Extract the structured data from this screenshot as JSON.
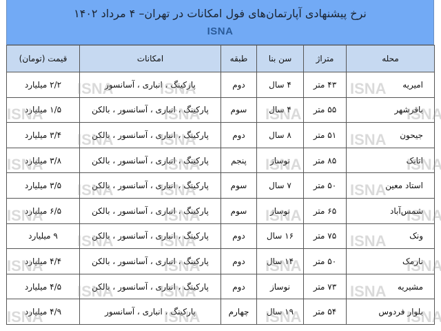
{
  "title": "نرخ پیشنهادی آپارتمان‌های فول امکانات در تهران– ۴ مرداد ۱۴۰۲",
  "brand": "ISNA",
  "watermark": "ISNA",
  "columns": [
    "محله",
    "متراژ",
    "سن بنا",
    "طبقه",
    "امکانات",
    "قیمت (تومان)"
  ],
  "rows": [
    [
      "امیریه",
      "۴۳ متر",
      "۴ سال",
      "دوم",
      "پارکینگ ، انباری ، آسانسور",
      "۲/۲ میلیارد"
    ],
    [
      "باقرشهر",
      "۵۵ متر",
      "۴ سال",
      "سوم",
      "پارکینگ ، انباری ، آسانسور ، بالکن",
      "۱/۵ میلیارد"
    ],
    [
      "جیحون",
      "۵۱ متر",
      "۸ سال",
      "دوم",
      "پارکینگ ، انباری ، آسانسور ، بالکن",
      "۳/۴ میلیارد"
    ],
    [
      "اتابک",
      "۸۵ متر",
      "نوساز",
      "پنجم",
      "پارکینگ ، انباری ، آسانسور ، بالکن",
      "۳/۸ میلیارد"
    ],
    [
      "استاد معین",
      "۵۰ متر",
      "۷ سال",
      "سوم",
      "پارکینگ ، انباری ، آسانسور ، بالکن",
      "۳/۵ میلیارد"
    ],
    [
      "شمس‌آباد",
      "۶۵ متر",
      "نوساز",
      "سوم",
      "پارکینگ ، انباری ، آسانسور ، بالکن",
      "۶/۵ میلیارد"
    ],
    [
      "ونک",
      "۷۵ متر",
      "۱۶ سال",
      "دوم",
      "پارکینگ ، انباری ، آسانسور ، بالکن",
      "۹ میلیارد"
    ],
    [
      "نارمک",
      "۵۰ متر",
      "۱۴ سال",
      "دوم",
      "پارکینگ ، انباری ، آسانسور ، بالکن",
      "۴/۴ میلیارد"
    ],
    [
      "مشیریه",
      "۷۳ متر",
      "نوساز",
      "دوم",
      "پارکینگ ، انباری ، آسانسور ، بالکن",
      "۴/۵ میلیارد"
    ],
    [
      "بلوار فردوس",
      "۵۴ متر",
      "۱۹ سال",
      "چهارم",
      "پارکینگ ، انباری ، آسانسور",
      "۴/۹ میلیارد"
    ]
  ]
}
